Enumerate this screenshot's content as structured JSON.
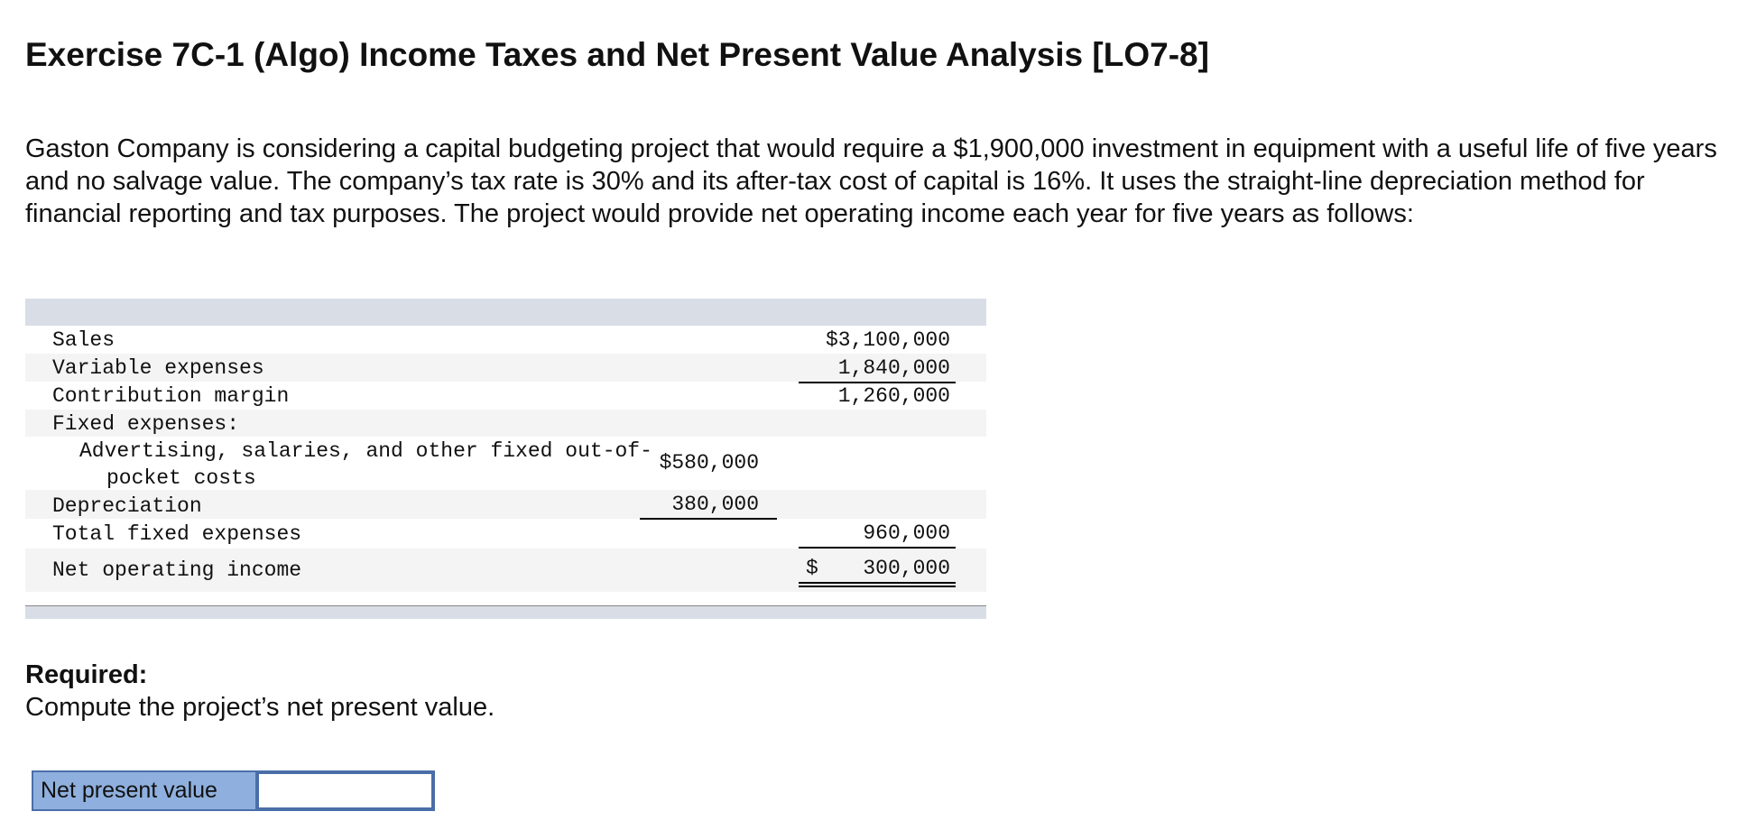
{
  "header": {
    "title": "Exercise 7C-1 (Algo) Income Taxes and Net Present Value Analysis [LO7-8]"
  },
  "intro": "Gaston Company is considering a capital budgeting project that would require a $1,900,000 investment in equipment with a useful life of five years and no salvage value. The company’s tax rate is 30% and its after-tax cost of capital is 16%. It uses the straight-line depreciation method for financial reporting and tax purposes. The project would provide net operating income each year for five years as follows:",
  "table": {
    "rows": [
      [
        "Sales",
        "",
        "$3,100,000"
      ],
      [
        "Variable expenses",
        "",
        "1,840,000"
      ],
      [
        "Contribution margin",
        "",
        "1,260,000"
      ],
      [
        "Fixed expenses:",
        "",
        ""
      ],
      [
        "Advertising, salaries, and other fixed out-of-pocket costs",
        "$580,000",
        ""
      ],
      [
        "Depreciation",
        "380,000",
        ""
      ],
      [
        "Total fixed expenses",
        "",
        "960,000"
      ],
      [
        "Net operating income",
        "",
        "300,000"
      ]
    ],
    "currency_symbol": "$"
  },
  "required": {
    "label": "Required:",
    "text": "Compute the project’s net present value."
  },
  "answer": {
    "label": "Net present value"
  }
}
